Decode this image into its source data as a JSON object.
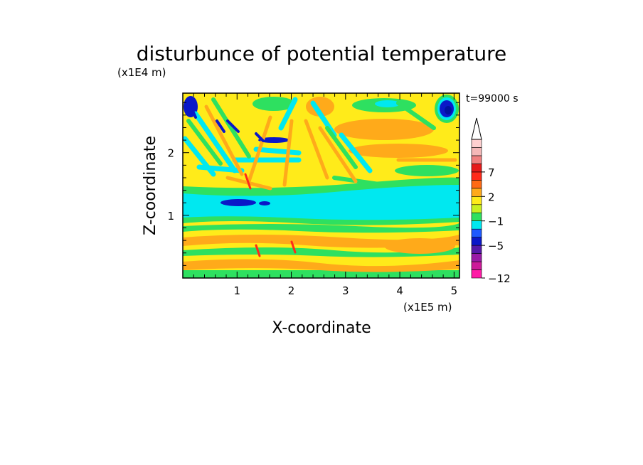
{
  "chart_data": {
    "type": "heatmap",
    "title": "disturbunce of potential temperature",
    "xlabel": "X-coordinate",
    "ylabel": "Z-coordinate",
    "x_unit": "(x1E5 m)",
    "y_unit": "(x1E4 m)",
    "time_label": "t=99000 s",
    "xlim": [
      0,
      5.1
    ],
    "ylim": [
      0,
      2.95
    ],
    "x_ticks": [
      1,
      2,
      3,
      4,
      5
    ],
    "y_ticks": [
      1,
      2
    ],
    "x_tick_labels": [
      "1",
      "2",
      "3",
      "4",
      "5"
    ],
    "y_tick_labels": [
      "1",
      "2"
    ],
    "colorbar": {
      "levels": [
        -12,
        -10,
        -8,
        -6,
        -5,
        -4,
        -3,
        -1,
        0,
        1,
        2,
        3,
        5,
        7,
        8,
        9,
        10,
        12
      ],
      "colors": [
        "#ff1aa6",
        "#cc1a99",
        "#991aa6",
        "#5519a8",
        "#0a18c8",
        "#1e5aff",
        "#00e8f0",
        "#2ee060",
        "#c8f020",
        "#ffeb1a",
        "#ffaa1a",
        "#ff6a14",
        "#ff2a1a",
        "#e61a1a",
        "#f08080",
        "#f5b8b8",
        "#ffd0d0"
      ],
      "labels": [
        {
          "text": "7",
          "value": 7
        },
        {
          "text": "2",
          "value": 2
        },
        {
          "text": "−1",
          "value": -1
        },
        {
          "text": "−5",
          "value": -5
        },
        {
          "text": "−12",
          "value": -12
        }
      ],
      "extend": "max"
    }
  }
}
